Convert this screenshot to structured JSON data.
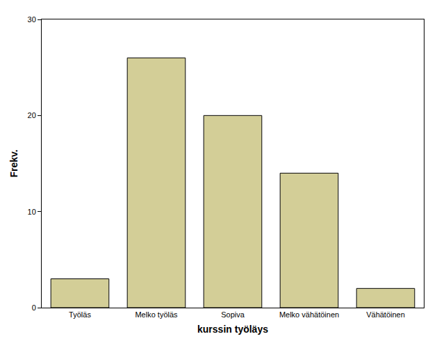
{
  "chart_data": {
    "type": "bar",
    "x_label": "kurssin työläys",
    "y_label": "Frekv.",
    "categories": [
      "Työläs",
      "Melko työläs",
      "Sopiva",
      "Melko vähätöinen",
      "Vähätöinen"
    ],
    "values": [
      3,
      26,
      20,
      14,
      2
    ],
    "color": "#d3ce97",
    "ylim": [
      0,
      30
    ],
    "yticks": [
      0,
      10,
      20,
      30
    ],
    "grid": false
  }
}
